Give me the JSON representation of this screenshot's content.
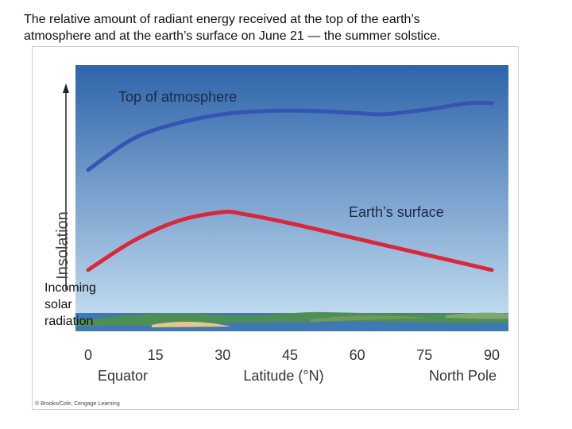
{
  "caption": {
    "line1": "The relative amount of radiant energy received at the top of the earth’s",
    "line2": "atmosphere and at the earth’s surface on June 21 — the summer solstice."
  },
  "side_label": [
    "Incoming",
    "solar",
    "radiation"
  ],
  "credit": "© Brooks/Cole, Cengage Learning",
  "colors": {
    "sky_top": "#2e64aa",
    "sky_bottom": "#c9e2f3",
    "top_series": "#3655b3",
    "surface_series": "#d8283c"
  },
  "chart_data": {
    "type": "line",
    "ylabel": "Insolation",
    "xlabel": "Latitude (°N)",
    "x_ticks": [
      0,
      15,
      30,
      45,
      60,
      75,
      90
    ],
    "xlim": [
      0,
      90
    ],
    "x_annotations": {
      "left": "Equator",
      "right": "North Pole"
    },
    "y_relative": true,
    "grid": false,
    "series": [
      {
        "name": "Top of atmosphere",
        "x": [
          0,
          10,
          20,
          30,
          40,
          50,
          60,
          66,
          75,
          85,
          90
        ],
        "y": [
          0.59,
          0.73,
          0.8,
          0.84,
          0.855,
          0.855,
          0.845,
          0.84,
          0.86,
          0.89,
          0.89
        ]
      },
      {
        "name": "Earth’s surface",
        "x": [
          0,
          10,
          20,
          30,
          35,
          45,
          60,
          75,
          90
        ],
        "y": [
          0.14,
          0.27,
          0.36,
          0.4,
          0.39,
          0.35,
          0.28,
          0.21,
          0.14
        ]
      }
    ]
  }
}
